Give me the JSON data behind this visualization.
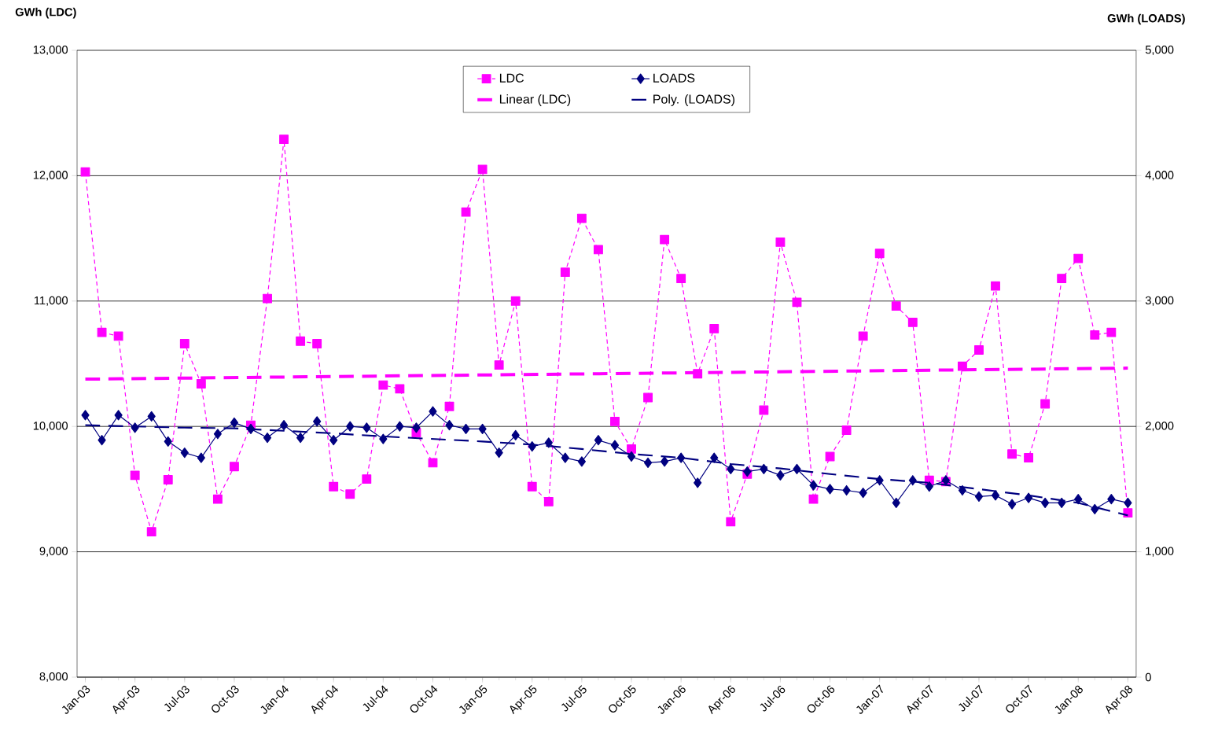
{
  "chart_data": {
    "type": "line",
    "ylabel": "GWh (LDC)",
    "y2label": "GWh (LOADS)",
    "categories": [
      "Jan-03",
      null,
      null,
      "Apr-03",
      null,
      null,
      "Jul-03",
      null,
      null,
      "Oct-03",
      null,
      null,
      "Jan-04",
      null,
      null,
      "Apr-04",
      null,
      null,
      "Jul-04",
      null,
      null,
      "Oct-04",
      null,
      null,
      "Jan-05",
      null,
      null,
      "Apr-05",
      null,
      null,
      "Jul-05",
      null,
      null,
      "Oct-05",
      null,
      null,
      "Jan-06",
      null,
      null,
      "Apr-06",
      null,
      null,
      "Jul-06",
      null,
      null,
      "Oct-06",
      null,
      null,
      "Jan-07",
      null,
      null,
      "Apr-07",
      null,
      null,
      "Jul-07",
      null,
      null,
      "Oct-07",
      null,
      null,
      "Jan-08",
      null,
      null,
      "Apr-08"
    ],
    "series": [
      {
        "name": "LDC",
        "color": "#ff00ff",
        "marker": "square",
        "line_style": "dashed",
        "values": [
          12030,
          10750,
          10720,
          9610,
          9160,
          9575,
          10660,
          10340,
          9420,
          9680,
          10010,
          11020,
          12290,
          10680,
          10660,
          9520,
          9460,
          9580,
          10330,
          10300,
          9950,
          9710,
          10160,
          11710,
          12050,
          10490,
          11000,
          9520,
          9400,
          11230,
          11660,
          11410,
          10040,
          9820,
          10230,
          11490,
          11180,
          10420,
          10780,
          9240,
          9620,
          10130,
          11470,
          10990,
          9420,
          9760,
          9970,
          10720,
          11380,
          10960,
          10830,
          9570,
          9560,
          10480,
          10610,
          11120,
          9780,
          9750,
          10180,
          11180,
          11340,
          10730,
          10750,
          9310
        ]
      },
      {
        "name": "LOADS",
        "color": "#000080",
        "marker": "diamond",
        "line_style": "solid",
        "axis": "y2",
        "values": [
          2090,
          1890,
          2090,
          1990,
          2080,
          1880,
          1790,
          1750,
          1940,
          2030,
          1980,
          1910,
          2010,
          1910,
          2040,
          1890,
          2000,
          1990,
          1900,
          2000,
          1990,
          2120,
          2010,
          1980,
          1980,
          1790,
          1930,
          1840,
          1870,
          1750,
          1720,
          1890,
          1850,
          1760,
          1710,
          1720,
          1750,
          1550,
          1750,
          1660,
          1640,
          1660,
          1610,
          1660,
          1530,
          1500,
          1490,
          1470,
          1570,
          1390,
          1570,
          1520,
          1570,
          1490,
          1440,
          1450,
          1380,
          1430,
          1390,
          1390,
          1420,
          1340,
          1420,
          1390
        ]
      },
      {
        "name": "Linear (LDC)",
        "color": "#ff00ff",
        "marker": "none",
        "line_style": "dashed",
        "x": [
          "Jan-03",
          "Apr-08"
        ],
        "values": [
          10377,
          10465
        ]
      },
      {
        "name": "Poly. (LOADS)",
        "color": "#000080",
        "marker": "none",
        "line_style": "dashed",
        "axis": "y2",
        "x": [
          "Jan-03",
          "Apr-03",
          "Jul-03",
          "Oct-03",
          "Jan-04",
          "Apr-04",
          "Jul-04",
          "Oct-04",
          "Jan-05",
          "Apr-05",
          "Jul-05",
          "Oct-05",
          "Jan-06",
          "Apr-06",
          "Jul-06",
          "Oct-06",
          "Jan-07",
          "Apr-07",
          "Jul-07",
          "Oct-07",
          "Jan-08",
          "Apr-08"
        ],
        "values": [
          2010,
          2000,
          1990,
          1985,
          1965,
          1945,
          1920,
          1900,
          1880,
          1855,
          1820,
          1780,
          1750,
          1700,
          1665,
          1620,
          1580,
          1550,
          1500,
          1450,
          1390,
          1290
        ]
      }
    ],
    "ylim": [
      8000,
      13000
    ],
    "yticks": [
      {
        "value": 8000,
        "label": "8,000"
      },
      {
        "value": 9000,
        "label": "9,000"
      },
      {
        "value": 10000,
        "label": "10,000"
      },
      {
        "value": 11000,
        "label": "11,000"
      },
      {
        "value": 12000,
        "label": "12,000"
      },
      {
        "value": 13000,
        "label": "13,000"
      }
    ],
    "y2lim": [
      0,
      5000
    ],
    "y2ticks": [
      0,
      {
        "value": 1000,
        "label": "1,000"
      },
      {
        "value": 2000,
        "label": "2,000"
      },
      {
        "value": 3000,
        "label": "3,000"
      },
      {
        "value": 4000,
        "label": "4,000"
      },
      {
        "value": 5000,
        "label": "5,000"
      }
    ],
    "grid": "y",
    "legend": "top"
  }
}
